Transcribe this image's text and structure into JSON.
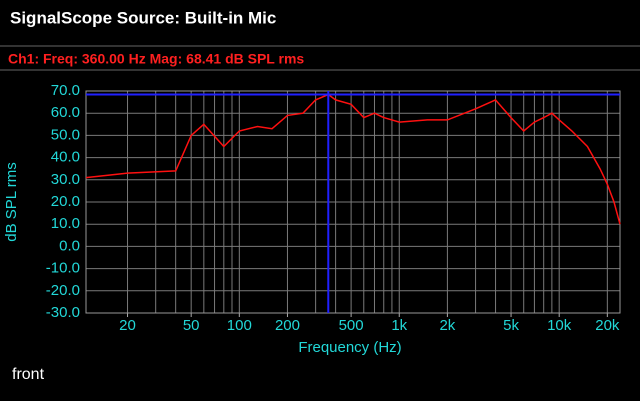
{
  "header": {
    "title": "SignalScope Source:  Built-in Mic",
    "readout": "Ch1:  Freq: 360.00 Hz   Mag: 68.41 dB SPL rms"
  },
  "chart_data": {
    "type": "line",
    "xlabel": "Frequency (Hz)",
    "ylabel": "dB SPL rms",
    "xscale": "log",
    "grid": true,
    "xlim": [
      11,
      24000
    ],
    "ylim": [
      -30,
      70
    ],
    "xticks": [
      20,
      50,
      100,
      200,
      500,
      {
        "value": 1000,
        "label": "1k"
      },
      {
        "value": 2000,
        "label": "2k"
      },
      {
        "value": 5000,
        "label": "5k"
      },
      {
        "value": 10000,
        "label": "10k"
      },
      {
        "value": 20000,
        "label": "20k"
      }
    ],
    "xgrid": [
      20,
      30,
      40,
      50,
      60,
      70,
      80,
      90,
      100,
      200,
      300,
      400,
      500,
      600,
      700,
      800,
      900,
      1000,
      2000,
      3000,
      4000,
      5000,
      6000,
      7000,
      8000,
      9000,
      10000,
      20000
    ],
    "yticks": [
      {
        "value": 70,
        "label": "70.0"
      },
      {
        "value": 60,
        "label": "60.0"
      },
      {
        "value": 50,
        "label": "50.0"
      },
      {
        "value": 40,
        "label": "40.0"
      },
      {
        "value": 30,
        "label": "30.0"
      },
      {
        "value": 20,
        "label": "20.0"
      },
      {
        "value": 10,
        "label": "10.0"
      },
      {
        "value": 0,
        "label": "0.0"
      },
      {
        "value": -10,
        "label": "-10.0"
      },
      {
        "value": -20,
        "label": "-20.0"
      },
      {
        "value": -30,
        "label": "-30.0"
      }
    ],
    "cursor": {
      "x": 360,
      "y": 68.41,
      "color": "#2020ff"
    },
    "series": [
      {
        "name": "Ch1",
        "color": "#ff1010",
        "x": [
          11,
          20,
          40,
          50,
          60,
          80,
          100,
          130,
          160,
          200,
          250,
          300,
          360,
          400,
          500,
          600,
          700,
          800,
          1000,
          1500,
          2000,
          3000,
          4000,
          5000,
          6000,
          7000,
          8000,
          9000,
          10000,
          12000,
          15000,
          18000,
          20000,
          22000,
          24000
        ],
        "values": [
          31,
          33,
          34,
          50,
          55,
          45,
          52,
          54,
          53,
          59,
          60,
          66,
          68.41,
          66,
          64,
          58,
          60,
          58,
          56,
          57,
          57,
          62,
          66,
          58,
          52,
          56,
          58,
          60,
          57,
          52,
          45,
          35,
          28,
          20,
          10
        ]
      }
    ]
  },
  "footer": "front"
}
